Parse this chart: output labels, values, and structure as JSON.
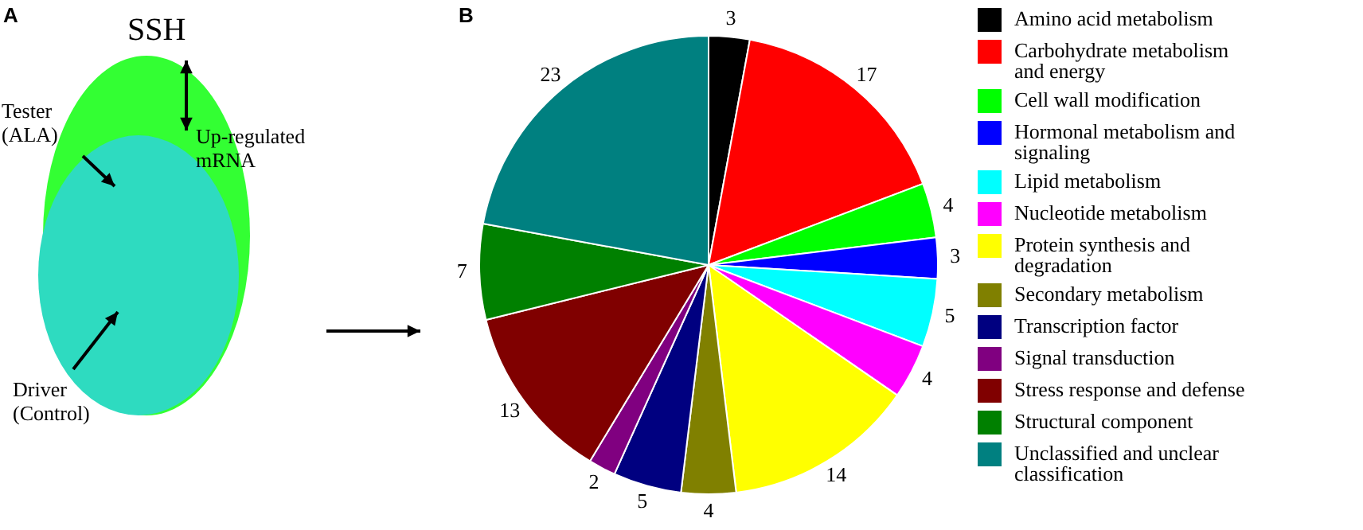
{
  "chart_data": [
    {
      "type": "other",
      "title": "SSH",
      "annotations": [
        "A",
        "Tester (ALA)",
        "Up-regulated mRNA",
        "Driver (Control)"
      ]
    },
    {
      "type": "pie",
      "annotations": [
        "B"
      ],
      "legend": "right",
      "data_labels": true,
      "categories": [
        "Amino acid metabolism",
        "Carbohydrate metabolism and energy",
        "Cell wall modification",
        "Hormonal metabolism and signaling",
        "Lipid metabolism",
        "Nucleotide metabolism",
        "Protein synthesis and degradation",
        "Secondary metabolism",
        "Transcription factor",
        "Signal transduction",
        "Stress response and defense",
        "Structural component",
        "Unclassified and unclear classification"
      ],
      "values": [
        3,
        17,
        4,
        3,
        5,
        4,
        14,
        4,
        5,
        2,
        13,
        7,
        23
      ],
      "colors": [
        "#000000",
        "#ff0000",
        "#00ff00",
        "#0000ff",
        "#00ffff",
        "#ff00ff",
        "#ffff00",
        "#808000",
        "#000080",
        "#800080",
        "#800000",
        "#008000",
        "#008080"
      ]
    }
  ]
}
